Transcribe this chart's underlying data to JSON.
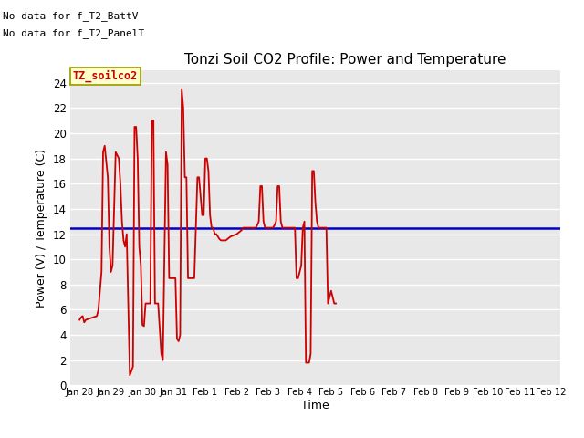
{
  "title": "Tonzi Soil CO2 Profile: Power and Temperature",
  "ylabel": "Power (V) / Temperature (C)",
  "xlabel": "Time",
  "no_data_text1": "No data for f_T2_BattV",
  "no_data_text2": "No data for f_T2_PanelT",
  "legend_label_text": "TZ_soilco2",
  "ylim": [
    0,
    25
  ],
  "yticks": [
    0,
    2,
    4,
    6,
    8,
    10,
    12,
    14,
    16,
    18,
    20,
    22,
    24
  ],
  "voltage_value": 12.5,
  "red_color": "#cc0000",
  "blue_color": "#0000cc",
  "x_dates": [
    "Jan 28",
    "Jan 29",
    "Jan 30",
    "Jan 31",
    "Feb 1",
    "Feb 2",
    "Feb 3",
    "Feb 4",
    "Feb 5",
    "Feb 6",
    "Feb 7",
    "Feb 8",
    "Feb 9",
    "Feb 10",
    "Feb 11",
    "Feb 12"
  ],
  "temp_data": [
    [
      0.0,
      5.2
    ],
    [
      0.05,
      5.4
    ],
    [
      0.1,
      5.5
    ],
    [
      0.15,
      5.0
    ],
    [
      0.2,
      5.2
    ],
    [
      0.55,
      5.5
    ],
    [
      0.6,
      6.0
    ],
    [
      0.7,
      9.0
    ],
    [
      0.75,
      18.5
    ],
    [
      0.8,
      19.0
    ],
    [
      0.9,
      16.5
    ],
    [
      0.95,
      11.0
    ],
    [
      1.0,
      9.0
    ],
    [
      1.05,
      9.5
    ],
    [
      1.15,
      18.5
    ],
    [
      1.25,
      18.0
    ],
    [
      1.3,
      16.0
    ],
    [
      1.35,
      13.0
    ],
    [
      1.4,
      11.5
    ],
    [
      1.45,
      11.0
    ],
    [
      1.5,
      12.0
    ],
    [
      1.6,
      0.8
    ],
    [
      1.7,
      1.5
    ],
    [
      1.75,
      20.5
    ],
    [
      1.8,
      20.5
    ],
    [
      1.85,
      18.0
    ],
    [
      1.9,
      11.0
    ],
    [
      1.95,
      9.5
    ],
    [
      2.0,
      4.8
    ],
    [
      2.05,
      4.7
    ],
    [
      2.1,
      6.5
    ],
    [
      2.15,
      6.5
    ],
    [
      2.2,
      6.5
    ],
    [
      2.25,
      6.5
    ],
    [
      2.3,
      21.0
    ],
    [
      2.35,
      21.0
    ],
    [
      2.4,
      6.5
    ],
    [
      2.45,
      6.5
    ],
    [
      2.5,
      6.5
    ],
    [
      2.6,
      2.5
    ],
    [
      2.65,
      2.0
    ],
    [
      2.75,
      18.5
    ],
    [
      2.8,
      17.5
    ],
    [
      2.85,
      8.5
    ],
    [
      2.9,
      8.5
    ],
    [
      2.95,
      8.5
    ],
    [
      3.0,
      8.5
    ],
    [
      3.05,
      8.5
    ],
    [
      3.1,
      3.7
    ],
    [
      3.15,
      3.5
    ],
    [
      3.2,
      4.0
    ],
    [
      3.25,
      23.5
    ],
    [
      3.3,
      22.0
    ],
    [
      3.35,
      16.5
    ],
    [
      3.4,
      16.5
    ],
    [
      3.45,
      8.5
    ],
    [
      3.5,
      8.5
    ],
    [
      3.55,
      8.5
    ],
    [
      3.6,
      8.5
    ],
    [
      3.65,
      8.5
    ],
    [
      3.75,
      16.5
    ],
    [
      3.8,
      16.5
    ],
    [
      3.85,
      15.0
    ],
    [
      3.9,
      13.5
    ],
    [
      3.95,
      13.5
    ],
    [
      4.0,
      18.0
    ],
    [
      4.05,
      18.0
    ],
    [
      4.1,
      17.0
    ],
    [
      4.15,
      13.5
    ],
    [
      4.2,
      12.5
    ],
    [
      4.25,
      12.5
    ],
    [
      4.3,
      12.0
    ],
    [
      4.35,
      12.0
    ],
    [
      4.4,
      11.8
    ],
    [
      4.45,
      11.6
    ],
    [
      4.5,
      11.5
    ],
    [
      4.55,
      11.5
    ],
    [
      4.6,
      11.5
    ],
    [
      4.65,
      11.5
    ],
    [
      4.7,
      11.6
    ],
    [
      4.75,
      11.7
    ],
    [
      4.8,
      11.8
    ],
    [
      4.9,
      11.9
    ],
    [
      5.0,
      12.0
    ],
    [
      5.1,
      12.2
    ],
    [
      5.15,
      12.3
    ],
    [
      5.2,
      12.5
    ],
    [
      5.3,
      12.5
    ],
    [
      5.4,
      12.5
    ],
    [
      5.5,
      12.5
    ],
    [
      5.6,
      12.5
    ],
    [
      5.65,
      12.7
    ],
    [
      5.7,
      13.0
    ],
    [
      5.75,
      15.8
    ],
    [
      5.8,
      15.8
    ],
    [
      5.85,
      13.0
    ],
    [
      5.9,
      12.5
    ],
    [
      6.0,
      12.5
    ],
    [
      6.05,
      12.5
    ],
    [
      6.1,
      12.5
    ],
    [
      6.15,
      12.5
    ],
    [
      6.2,
      12.7
    ],
    [
      6.25,
      13.0
    ],
    [
      6.3,
      15.8
    ],
    [
      6.35,
      15.8
    ],
    [
      6.4,
      13.0
    ],
    [
      6.45,
      12.5
    ],
    [
      6.5,
      12.5
    ],
    [
      6.55,
      12.5
    ],
    [
      6.6,
      12.5
    ],
    [
      6.65,
      12.5
    ],
    [
      6.7,
      12.5
    ],
    [
      6.75,
      12.5
    ],
    [
      6.8,
      12.5
    ],
    [
      6.85,
      12.5
    ],
    [
      6.9,
      8.5
    ],
    [
      6.95,
      8.5
    ],
    [
      7.0,
      9.0
    ],
    [
      7.05,
      9.5
    ],
    [
      7.1,
      12.5
    ],
    [
      7.15,
      13.0
    ],
    [
      7.2,
      1.8
    ],
    [
      7.3,
      1.8
    ],
    [
      7.35,
      2.5
    ],
    [
      7.4,
      17.0
    ],
    [
      7.45,
      17.0
    ],
    [
      7.5,
      14.5
    ],
    [
      7.55,
      13.0
    ],
    [
      7.6,
      12.5
    ],
    [
      7.65,
      12.5
    ],
    [
      7.7,
      12.5
    ],
    [
      7.75,
      12.5
    ],
    [
      7.8,
      12.5
    ],
    [
      7.85,
      12.5
    ],
    [
      7.9,
      6.5
    ],
    [
      7.95,
      7.0
    ],
    [
      8.0,
      7.5
    ],
    [
      8.05,
      7.0
    ],
    [
      8.1,
      6.5
    ],
    [
      8.15,
      6.5
    ]
  ]
}
